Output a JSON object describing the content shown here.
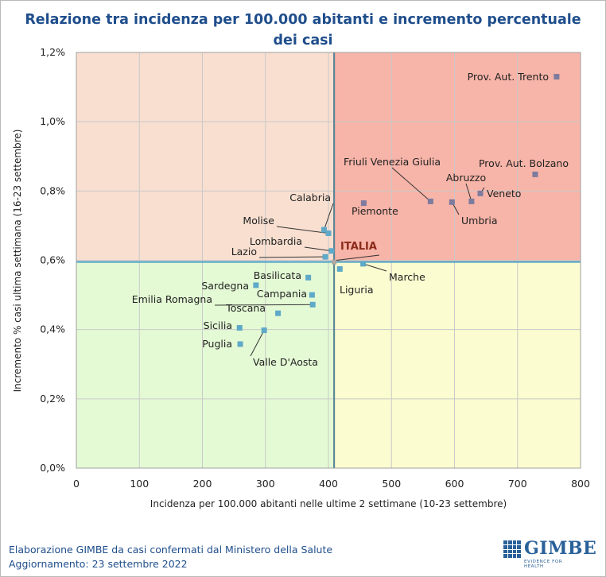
{
  "colors": {
    "title": "#1f4e8c",
    "q_upper_left": "#f8dfd0",
    "q_upper_right": "#f7b4a8",
    "q_lower_left": "#e4fad5",
    "q_lower_right": "#fbfcd0",
    "divider_x": "#5a5a5a",
    "divider_y": "#4aa3c8",
    "marker_high": "#7d7b9e",
    "marker_low": "#5fa9c8",
    "grid": "#c9c9c9"
  },
  "footer": {
    "line1": "Elaborazione GIMBE da casi confermati dal Ministero della Salute",
    "line2": "Aggiornamento: 23 settembre 2022"
  },
  "logo": {
    "word": "GIMBE",
    "tagline": "EVIDENCE FOR HEALTH"
  },
  "chart_data": {
    "type": "scatter",
    "title": "Relazione tra incidenza per 100.000 abitanti e incremento percentuale dei casi",
    "xlabel": "Incidenza per 100.000 abitanti nelle ultime 2 settimane (10-23 settembre)",
    "ylabel": "Incremento % casi ultima settimana (16-23 settembre)",
    "xlim": [
      0,
      800
    ],
    "ylim": [
      0,
      1.2
    ],
    "x_ticks": [
      "0",
      "100",
      "200",
      "300",
      "400",
      "500",
      "600",
      "700",
      "800"
    ],
    "y_ticks": [
      "0,0%",
      "0,2%",
      "0,4%",
      "0,6%",
      "0,8%",
      "1,0%",
      "1,2%"
    ],
    "grid": true,
    "reference": {
      "label": "ITALIA",
      "x": 409,
      "y": 0.595
    },
    "points": [
      {
        "name": "Prov. Aut. Trento",
        "x": 762,
        "y": 1.13
      },
      {
        "name": "Prov. Aut. Bolzano",
        "x": 728,
        "y": 0.848
      },
      {
        "name": "Veneto",
        "x": 641,
        "y": 0.793
      },
      {
        "name": "Abruzzo",
        "x": 627,
        "y": 0.77
      },
      {
        "name": "Umbria",
        "x": 596,
        "y": 0.768
      },
      {
        "name": "Friuli Venezia Giulia",
        "x": 562,
        "y": 0.77
      },
      {
        "name": "Piemonte",
        "x": 456,
        "y": 0.765
      },
      {
        "name": "Calabria",
        "x": 393,
        "y": 0.688
      },
      {
        "name": "Molise",
        "x": 400,
        "y": 0.678
      },
      {
        "name": "Lombardia",
        "x": 405,
        "y": 0.627
      },
      {
        "name": "Lazio",
        "x": 395,
        "y": 0.61
      },
      {
        "name": "Marche",
        "x": 455,
        "y": 0.59
      },
      {
        "name": "Liguria",
        "x": 418,
        "y": 0.575
      },
      {
        "name": "Basilicata",
        "x": 368,
        "y": 0.55
      },
      {
        "name": "Sardegna",
        "x": 285,
        "y": 0.528
      },
      {
        "name": "Campania",
        "x": 374,
        "y": 0.5
      },
      {
        "name": "Emilia Romagna",
        "x": 375,
        "y": 0.472
      },
      {
        "name": "Toscana",
        "x": 320,
        "y": 0.447
      },
      {
        "name": "Sicilia",
        "x": 259,
        "y": 0.405
      },
      {
        "name": "Valle D'Aosta",
        "x": 298,
        "y": 0.398
      },
      {
        "name": "Puglia",
        "x": 260,
        "y": 0.358
      }
    ]
  }
}
